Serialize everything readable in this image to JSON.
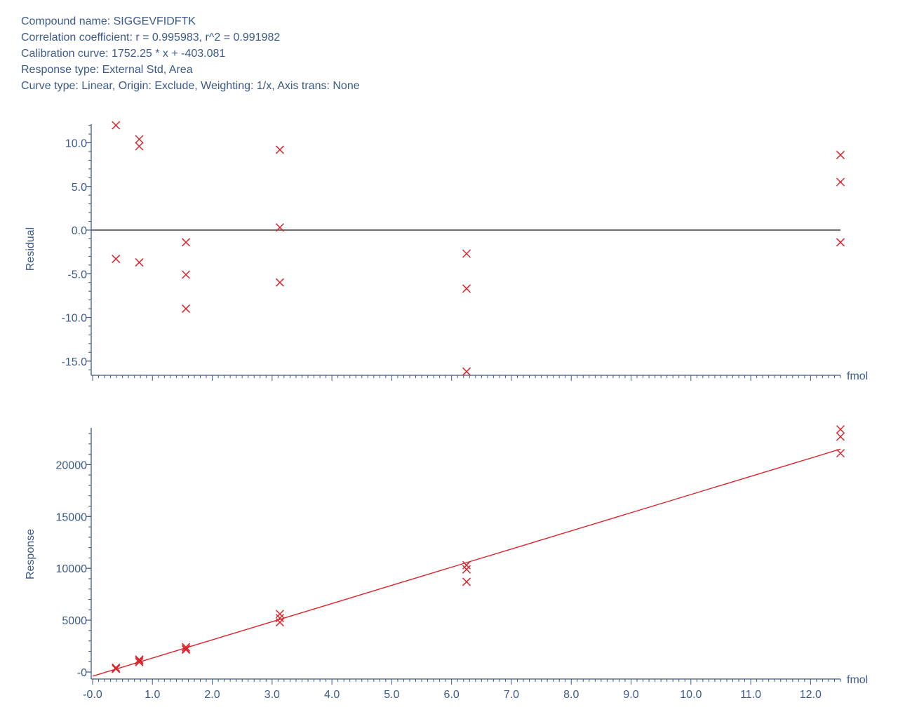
{
  "header": {
    "compound": "Compound name: SIGGEVFIDFTK",
    "correlation": "Correlation coefficient: r = 0.995983, r^2 = 0.991982",
    "calibration": "Calibration curve: 1752.25 * x + -403.081",
    "response_type": "Response type: External Std, Area",
    "curve_type": "Curve type: Linear, Origin: Exclude, Weighting: 1/x, Axis trans: None"
  },
  "colors": {
    "text": "#3b5a8a",
    "axis": "#3b5a8a",
    "marker": "#d9262c",
    "fit_line": "#d9262c",
    "zero_line": "#707070"
  },
  "chart_data": [
    {
      "type": "scatter",
      "ylabel": "Residual",
      "xlabel": "fmol",
      "xlim": [
        0,
        12.5
      ],
      "ylim": [
        -16.5,
        12.5
      ],
      "y_ticks": [
        10,
        5,
        0,
        -5,
        -10,
        -15
      ],
      "y_tick_labels": [
        "10.0",
        "5.0",
        "0.0",
        "-5.0",
        "-10.0",
        "-15.0"
      ],
      "zero_line": true,
      "series": [
        {
          "points": [
            {
              "x": 0.39,
              "y": 12.0
            },
            {
              "x": 0.39,
              "y": -3.3
            },
            {
              "x": 0.78,
              "y": 10.4
            },
            {
              "x": 0.78,
              "y": 9.6
            },
            {
              "x": 0.78,
              "y": -3.7
            },
            {
              "x": 1.56,
              "y": -1.4
            },
            {
              "x": 1.56,
              "y": -5.1
            },
            {
              "x": 1.56,
              "y": -9.0
            },
            {
              "x": 3.13,
              "y": 9.2
            },
            {
              "x": 3.13,
              "y": 0.3
            },
            {
              "x": 3.13,
              "y": -6.0
            },
            {
              "x": 6.25,
              "y": -2.7
            },
            {
              "x": 6.25,
              "y": -6.7
            },
            {
              "x": 6.25,
              "y": -16.2
            },
            {
              "x": 12.5,
              "y": 8.6
            },
            {
              "x": 12.5,
              "y": 5.5
            },
            {
              "x": 12.5,
              "y": -1.4
            }
          ]
        }
      ]
    },
    {
      "type": "scatter",
      "ylabel": "Response",
      "xlabel": "fmol",
      "xlim": [
        0,
        12.5
      ],
      "ylim": [
        -600,
        23500
      ],
      "x_ticks": [
        0,
        1,
        2,
        3,
        4,
        5,
        6,
        7,
        8,
        9,
        10,
        11,
        12
      ],
      "x_tick_labels": [
        "-0.0",
        "1.0",
        "2.0",
        "3.0",
        "4.0",
        "5.0",
        "6.0",
        "7.0",
        "8.0",
        "9.0",
        "10.0",
        "11.0",
        "12.0"
      ],
      "y_ticks": [
        20000,
        15000,
        10000,
        5000,
        0
      ],
      "y_tick_labels": [
        "20000",
        "15000",
        "10000",
        "5000",
        "-0"
      ],
      "fit": {
        "slope": 1752.25,
        "intercept": -403.081
      },
      "series": [
        {
          "points": [
            {
              "x": 0.39,
              "y": 300
            },
            {
              "x": 0.39,
              "y": 420
            },
            {
              "x": 0.78,
              "y": 950
            },
            {
              "x": 0.78,
              "y": 1100
            },
            {
              "x": 0.78,
              "y": 1200
            },
            {
              "x": 1.56,
              "y": 2150
            },
            {
              "x": 1.56,
              "y": 2250
            },
            {
              "x": 1.56,
              "y": 2400
            },
            {
              "x": 3.13,
              "y": 4800
            },
            {
              "x": 3.13,
              "y": 5200
            },
            {
              "x": 3.13,
              "y": 5600
            },
            {
              "x": 6.25,
              "y": 8700
            },
            {
              "x": 6.25,
              "y": 9900
            },
            {
              "x": 6.25,
              "y": 10300
            },
            {
              "x": 12.5,
              "y": 21100
            },
            {
              "x": 12.5,
              "y": 22700
            },
            {
              "x": 12.5,
              "y": 23400
            }
          ]
        }
      ]
    }
  ]
}
